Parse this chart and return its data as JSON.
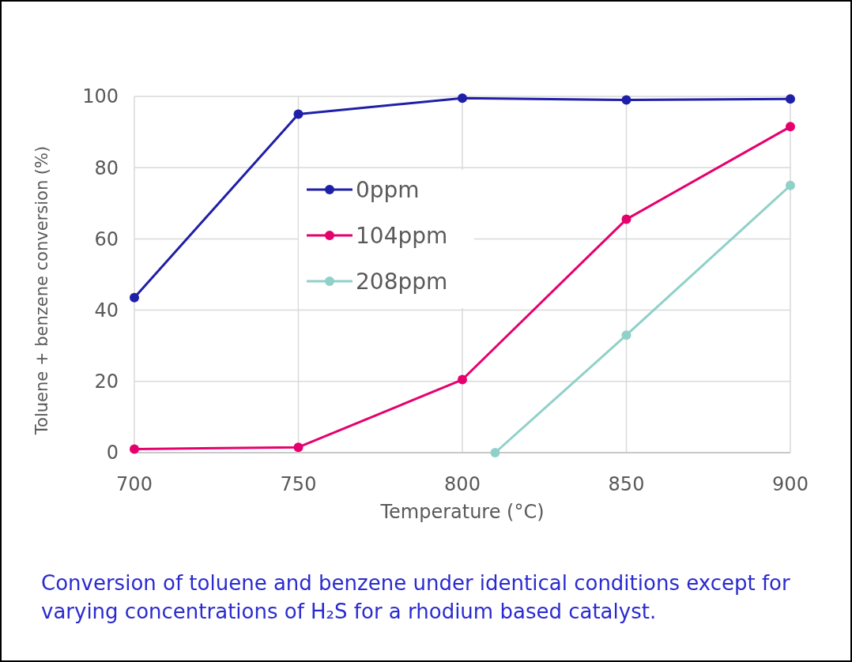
{
  "chart_data": {
    "type": "line",
    "xlabel": "Temperature (°C)",
    "ylabel": "Toluene + benzene conversion (%)",
    "x": [
      700,
      750,
      800,
      850,
      900
    ],
    "series": [
      {
        "name": "0ppm",
        "color": "#1f1fa8",
        "values": [
          43.5,
          95,
          99.5,
          99,
          99.3
        ]
      },
      {
        "name": "104ppm",
        "color": "#e6006e",
        "values": [
          1,
          1.5,
          20.5,
          65.5,
          91.5
        ]
      },
      {
        "name": "208ppm",
        "color": "#8fd1c8",
        "x": [
          810,
          850,
          900
        ],
        "values": [
          0,
          33,
          75
        ]
      }
    ],
    "xlim": [
      700,
      900
    ],
    "xticks": [
      700,
      750,
      800,
      850,
      900
    ],
    "ylim": [
      0,
      100
    ],
    "yticks": [
      0,
      20,
      40,
      60,
      80,
      100
    ],
    "grid": true,
    "legend": "top left",
    "marker": "circle",
    "line_style": "solid",
    "annotations": [
      "Conversion of toluene and benzene under identical conditions except for varying concentrations of H₂S for a rhodium based catalyst."
    ]
  }
}
